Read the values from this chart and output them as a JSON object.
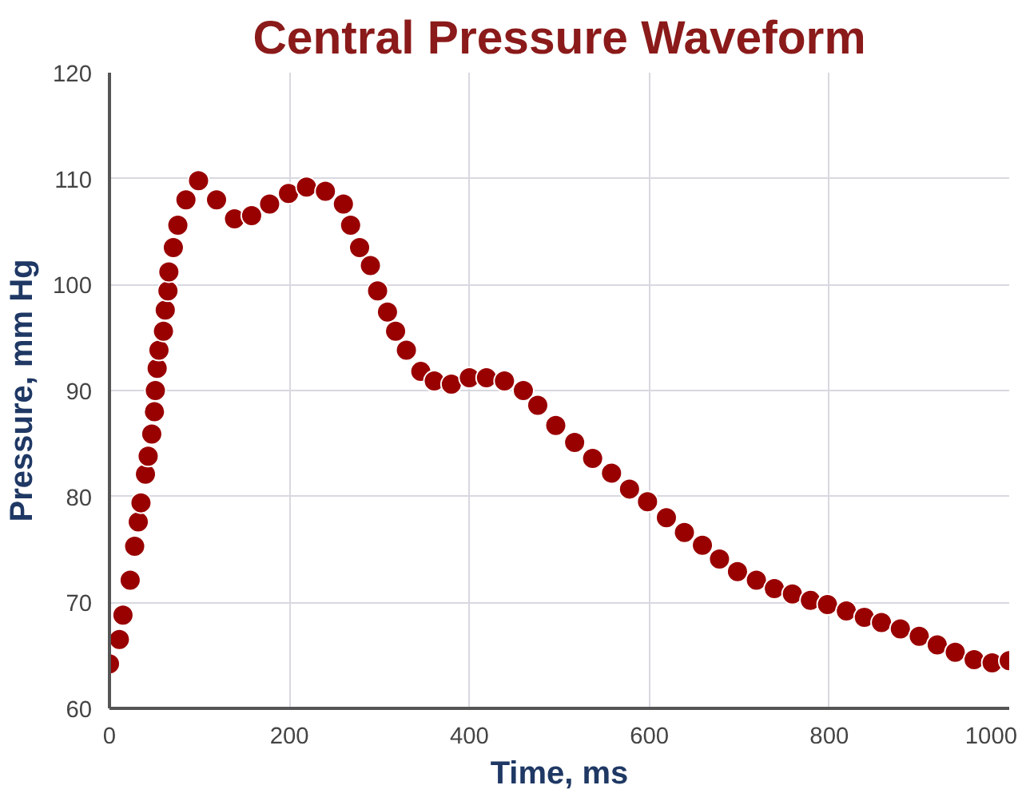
{
  "chart_data": {
    "type": "scatter",
    "title": "Central Pressure Waveform",
    "xlabel": "Time, ms",
    "ylabel": "Pressure, mm Hg",
    "x": [
      0,
      11,
      15,
      23,
      28,
      32,
      35,
      40,
      43,
      47,
      50,
      51,
      53,
      55,
      60,
      62,
      65,
      66,
      71,
      76,
      85,
      99,
      119,
      139,
      158,
      178,
      199,
      219,
      240,
      260,
      268,
      278,
      290,
      298,
      309,
      318,
      330,
      346,
      361,
      380,
      400,
      419,
      439,
      460,
      476,
      496,
      517,
      537,
      558,
      578,
      598,
      619,
      639,
      659,
      678,
      698,
      719,
      739,
      759,
      779,
      798,
      819,
      839,
      858,
      879,
      900,
      920,
      940,
      961,
      981,
      1000
    ],
    "series": [
      {
        "color": "#990000",
        "values": [
          64.2,
          66.5,
          68.8,
          72.1,
          75.3,
          77.6,
          79.4,
          82.1,
          83.8,
          85.9,
          88,
          90,
          92.1,
          93.8,
          95.6,
          97.6,
          99.4,
          101.2,
          103.5,
          105.6,
          108,
          109.8,
          108,
          106.2,
          106.5,
          107.6,
          108.6,
          109.2,
          108.8,
          107.6,
          105.6,
          103.5,
          101.8,
          99.4,
          97.4,
          95.6,
          93.8,
          91.8,
          90.9,
          90.6,
          91.2,
          91.2,
          90.9,
          90,
          88.6,
          86.7,
          85.1,
          83.6,
          82.2,
          80.7,
          79.5,
          78,
          76.6,
          75.4,
          74.1,
          72.9,
          72.1,
          71.3,
          70.8,
          70.2,
          69.8,
          69.2,
          68.6,
          68.1,
          67.5,
          66.8,
          66,
          65.3,
          64.6,
          64.3,
          64.5
        ]
      }
    ],
    "xlim": [
      0,
      1000
    ],
    "ylim": [
      60,
      120
    ],
    "xticks": [
      0,
      200,
      400,
      600,
      800,
      1000
    ],
    "yticks": [
      60,
      70,
      80,
      90,
      100,
      110,
      120
    ],
    "grid": true,
    "marker": "circle"
  }
}
